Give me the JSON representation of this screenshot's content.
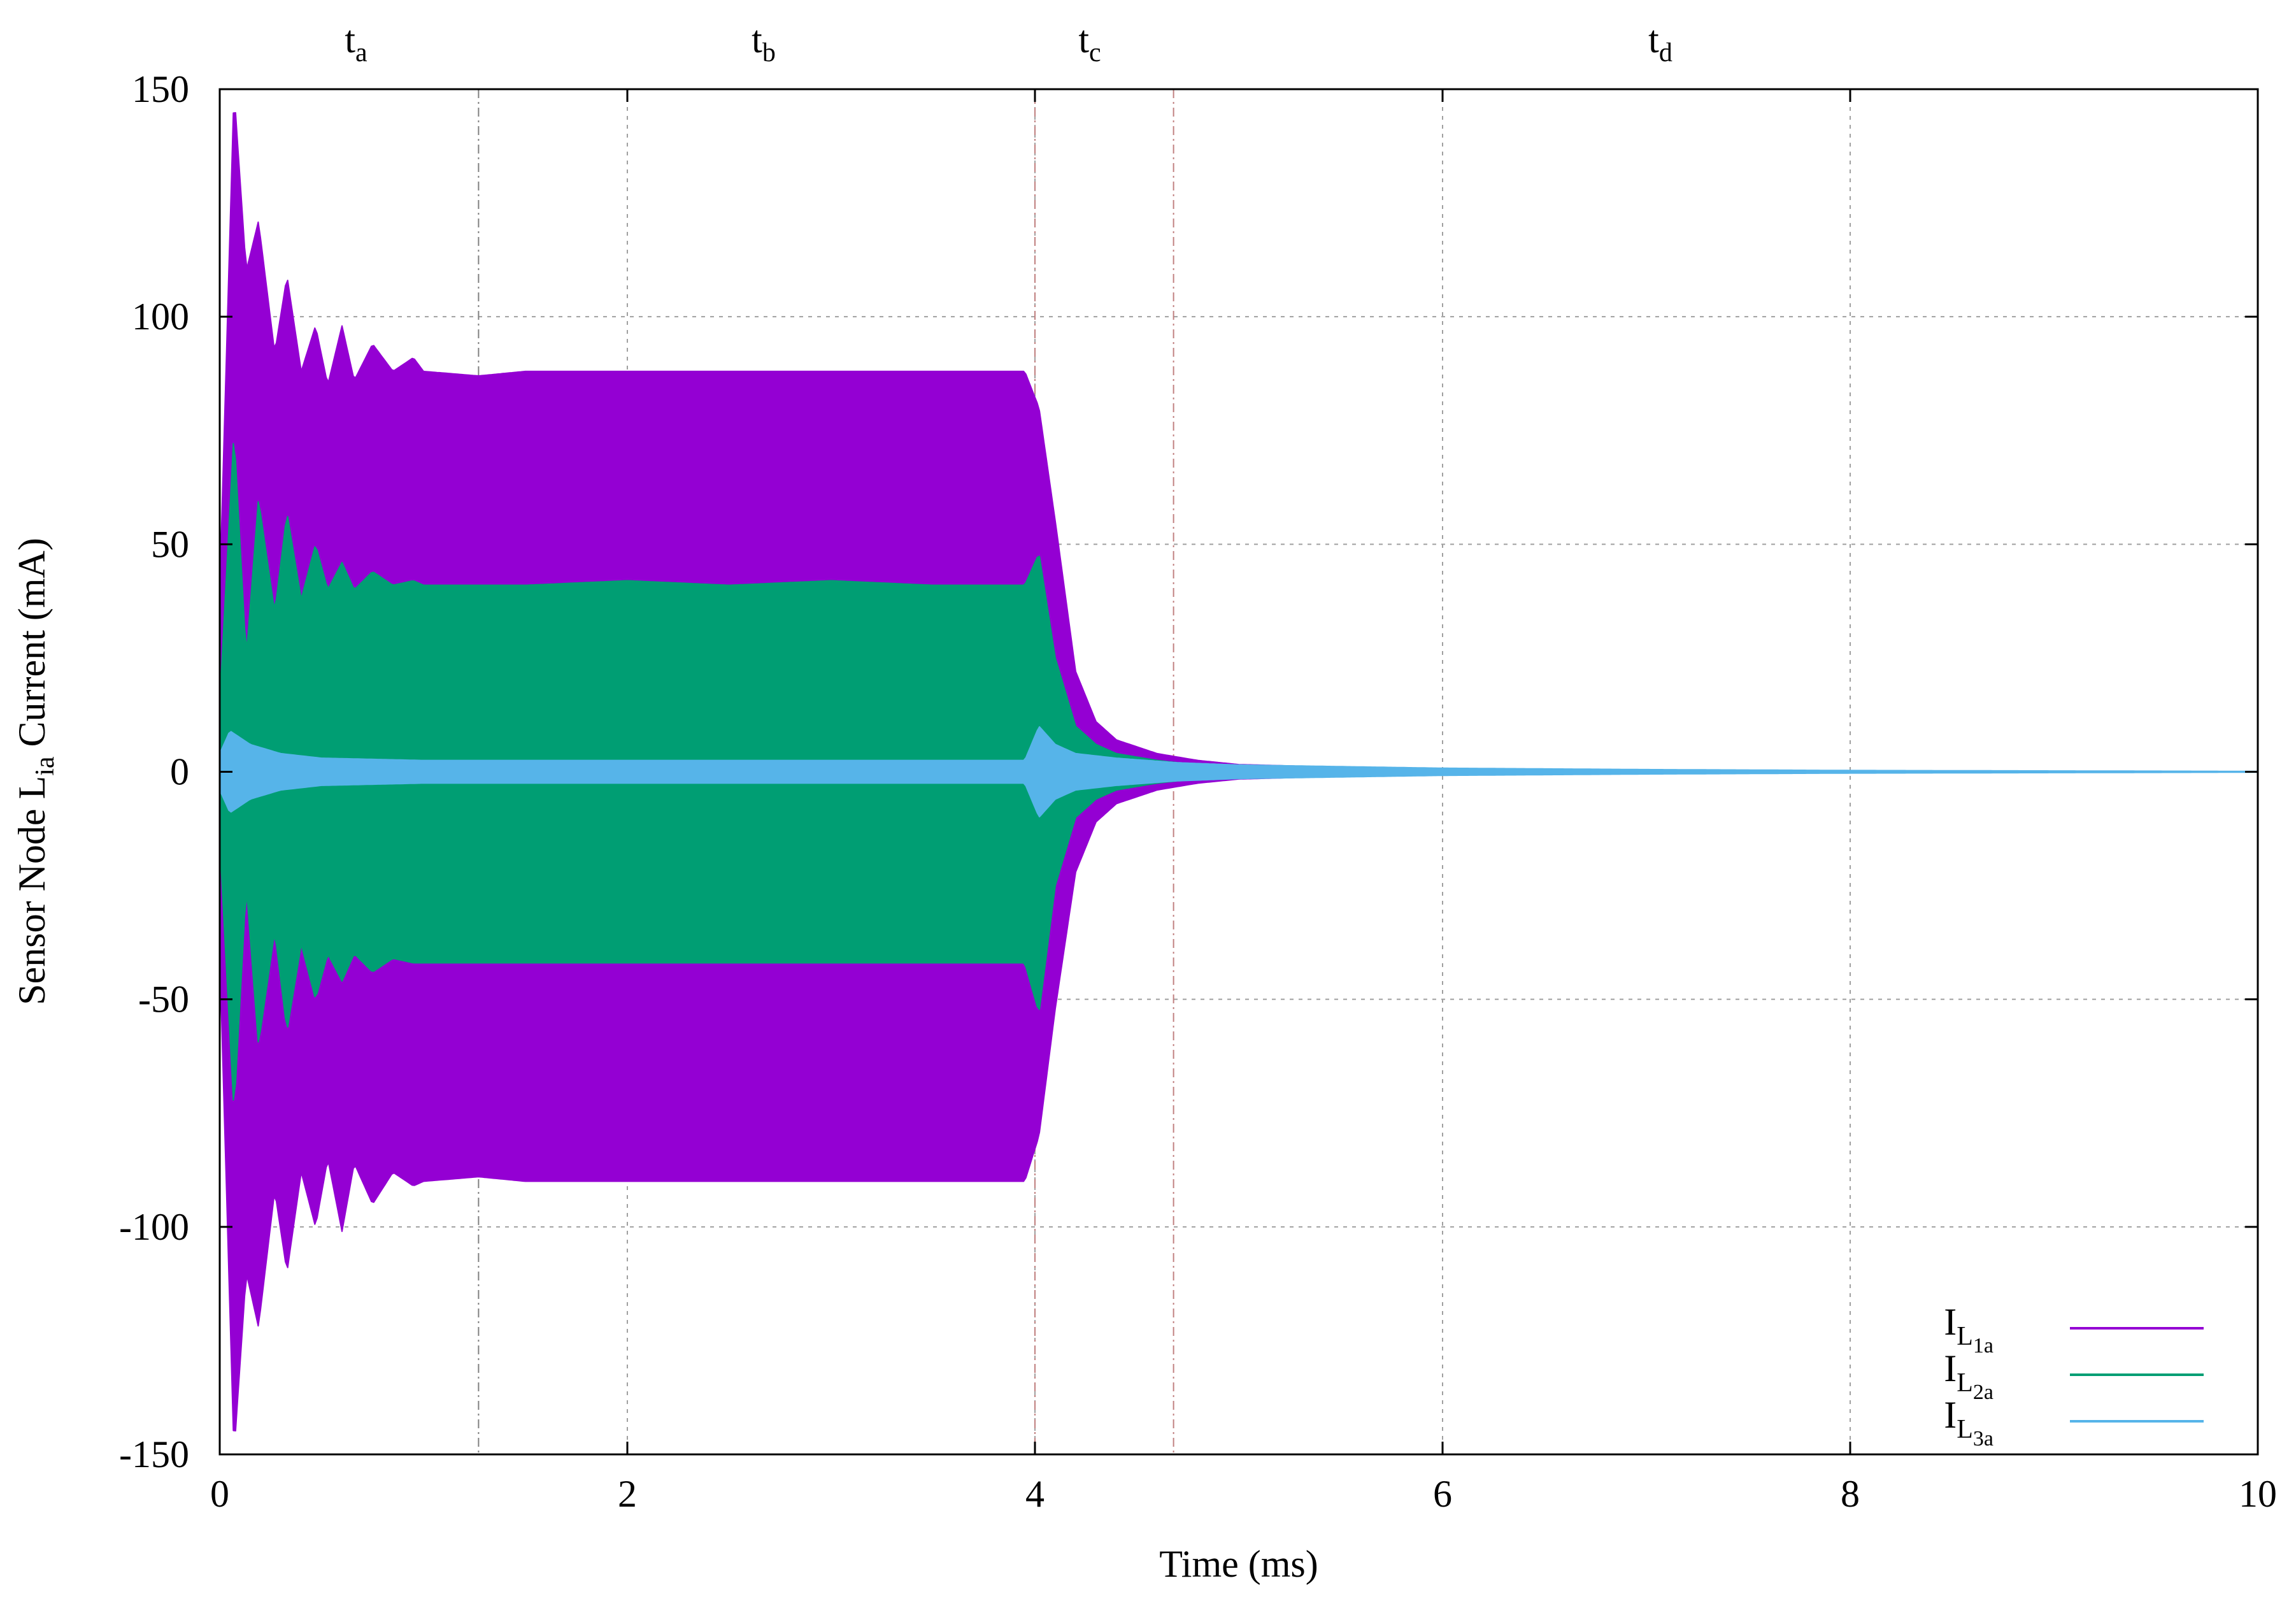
{
  "chart_data": {
    "type": "line",
    "title": "",
    "xlabel": "Time (ms)",
    "ylabel": {
      "main": "Sensor Node L",
      "sub": "ia",
      "rest": " Current (mA)"
    },
    "xlim": [
      0,
      10
    ],
    "ylim": [
      -150,
      150
    ],
    "x_ticks": [
      "0",
      "2",
      "4",
      "6",
      "8",
      "10"
    ],
    "y_ticks": [
      "150",
      "100",
      "50",
      "0",
      "-50",
      "-100",
      "-150"
    ],
    "x_tick_values": [
      0,
      2,
      4,
      6,
      8,
      10
    ],
    "y_tick_values": [
      150,
      100,
      50,
      0,
      -50,
      -100,
      -150
    ],
    "grid": true,
    "legend_position": "bottom-right",
    "phase_markers": [
      {
        "label": "t",
        "sub": "a",
        "label_x": 0.7
      },
      {
        "label": "t",
        "sub": "b",
        "label_x": 2.7
      },
      {
        "label": "t",
        "sub": "c",
        "label_x": 4.3
      },
      {
        "label": "t",
        "sub": "d",
        "label_x": 7.1
      }
    ],
    "phase_boundaries": [
      1.27,
      4.0,
      4.68
    ],
    "series": [
      {
        "name": "I_L1a",
        "legend_main": "I",
        "legend_sub": "L",
        "legend_subsub": "1a",
        "color": "#9400d3",
        "x": [
          0,
          0.07,
          0.13,
          0.19,
          0.27,
          0.33,
          0.4,
          0.47,
          0.53,
          0.6,
          0.66,
          0.75,
          0.85,
          0.95,
          1.0,
          1.27,
          1.5,
          2.0,
          2.5,
          3.0,
          3.5,
          3.95,
          4.02,
          4.1,
          4.2,
          4.3,
          4.4,
          4.6,
          4.8,
          5.0,
          5.5,
          6.0,
          7.0,
          8.0,
          9.0,
          10.0
        ],
        "envelope_upper": [
          40,
          150,
          110,
          121,
          92,
          109,
          88,
          98,
          85,
          98,
          86,
          94,
          88,
          91,
          88,
          87,
          88,
          88,
          88,
          88,
          88,
          88,
          80,
          55,
          22,
          11,
          7,
          4,
          2.5,
          1.6,
          1.0,
          0.7,
          0.4,
          0.2,
          0.1,
          0.05
        ],
        "envelope_lower": [
          -40,
          -150,
          -110,
          -122,
          -92,
          -110,
          -88,
          -100,
          -85,
          -101,
          -86,
          -95,
          -88,
          -91,
          -90,
          -89,
          -90,
          -90,
          -90,
          -90,
          -90,
          -90,
          -80,
          -52,
          -22,
          -11,
          -7,
          -4,
          -2.5,
          -1.6,
          -1.0,
          -0.7,
          -0.4,
          -0.2,
          -0.1,
          -0.05
        ]
      },
      {
        "name": "I_L2a",
        "legend_main": "I",
        "legend_sub": "L",
        "legend_subsub": "2a",
        "color": "#009e73",
        "x": [
          0,
          0.07,
          0.13,
          0.19,
          0.27,
          0.33,
          0.4,
          0.47,
          0.53,
          0.6,
          0.66,
          0.75,
          0.85,
          0.95,
          1.0,
          1.27,
          1.5,
          2.0,
          2.5,
          3.0,
          3.5,
          3.95,
          4.02,
          4.1,
          4.2,
          4.3,
          4.4,
          4.6,
          4.8,
          5.0,
          5.5,
          6.0,
          7.0,
          8.0,
          9.0,
          10.0
        ],
        "envelope_upper": [
          15,
          75,
          25,
          60,
          35,
          57,
          38,
          50,
          40,
          46,
          40,
          44,
          41,
          42,
          41,
          41,
          41,
          42,
          41,
          42,
          41,
          41,
          48,
          25,
          10,
          6,
          4,
          2.5,
          1.5,
          1.0,
          0.6,
          0.4,
          0.25,
          0.15,
          0.08,
          0.04
        ],
        "envelope_lower": [
          -15,
          -75,
          -25,
          -60,
          -35,
          -57,
          -38,
          -50,
          -40,
          -46,
          -40,
          -44,
          -41,
          -42,
          -42,
          -42,
          -42,
          -42,
          -42,
          -42,
          -42,
          -42,
          -53,
          -25,
          -10,
          -6,
          -4,
          -2.5,
          -1.5,
          -1.0,
          -0.6,
          -0.4,
          -0.25,
          -0.15,
          -0.08,
          -0.04
        ]
      },
      {
        "name": "I_L3a",
        "legend_main": "I",
        "legend_sub": "L",
        "legend_subsub": "3a",
        "color": "#56b4e9",
        "x": [
          0,
          0.05,
          0.15,
          0.3,
          0.5,
          1.0,
          2.0,
          3.0,
          3.95,
          4.02,
          4.1,
          4.2,
          4.4,
          4.7,
          5.0,
          6.0,
          7.0,
          8.0,
          9.0,
          10.0
        ],
        "envelope_upper": [
          4,
          9,
          6,
          4,
          3,
          2.5,
          2.5,
          2.5,
          2.5,
          10,
          6,
          4,
          3,
          2,
          1.5,
          0.8,
          0.5,
          0.3,
          0.2,
          0.1
        ],
        "envelope_lower": [
          -4,
          -9,
          -6,
          -4,
          -3,
          -2.5,
          -2.5,
          -2.5,
          -2.5,
          -10,
          -6,
          -4,
          -3,
          -2,
          -1.5,
          -0.8,
          -0.5,
          -0.3,
          -0.2,
          -0.1
        ]
      }
    ]
  }
}
